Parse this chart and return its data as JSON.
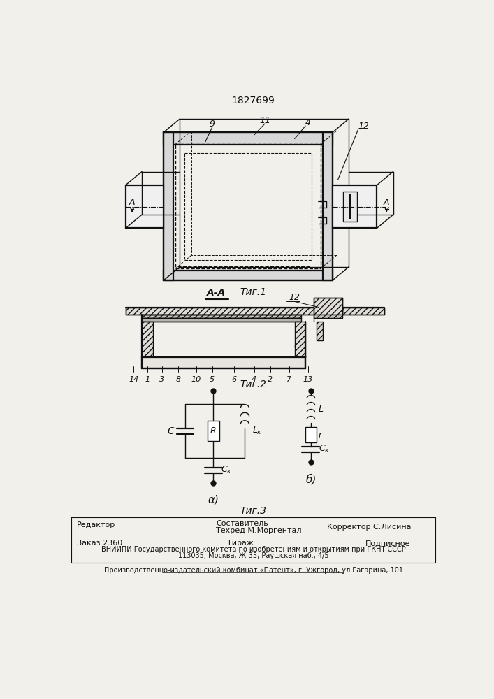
{
  "patent_number": "1827699",
  "fig1_caption": "Τиг.1",
  "fig2_caption": "Τиг.2",
  "fig3_caption": "Τиг.3",
  "circuit_a_label": "α)",
  "circuit_b_label": "б)",
  "footer_editor": "Редактор",
  "footer_composer": "Составитель",
  "footer_techred": "Техред М.Моргентал",
  "footer_corrector": "Корректор С.Лисина",
  "footer_order": "Заказ 2360",
  "footer_tirazh": "Тираж",
  "footer_podpisnoe": "Подписное",
  "footer_vniip": "ВНИИПИ Государственного комитета по изобретениям и открытиям при ГКНТ СССР",
  "footer_address": "113035, Москва, Ж-35, Раушская наб., 4/5",
  "footer_plant": "Производственно-издательский комбинат «Патент», г. Ужгород, ул.Гагарина, 101",
  "bg_color": "#f2f0eb",
  "line_color": "#111111"
}
